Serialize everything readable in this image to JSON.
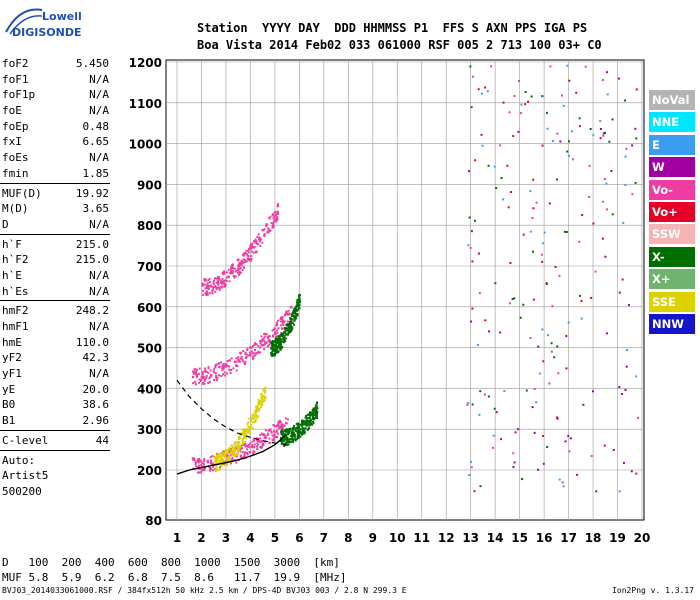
{
  "logo": {
    "brand": "Lowell",
    "product": "DIGISONDE"
  },
  "header": {
    "labels": [
      "Station",
      "YYYY",
      "DAY",
      "DDD",
      "HHMMSS",
      "P1",
      "FFS",
      "S",
      "AXN",
      "PPS",
      "IGA",
      "PS"
    ],
    "values": [
      "Boa Vista",
      "2014",
      "Feb02",
      "033",
      "061000",
      "RSF",
      "005",
      "2",
      "713",
      "100",
      "03+",
      "C0"
    ]
  },
  "params": [
    {
      "name": "foF2",
      "value": "5.450"
    },
    {
      "name": "foF1",
      "value": "N/A"
    },
    {
      "name": "foF1p",
      "value": "N/A"
    },
    {
      "name": "foE",
      "value": "N/A"
    },
    {
      "name": "foEp",
      "value": "0.48"
    },
    {
      "name": "fxI",
      "value": "6.65"
    },
    {
      "name": "foEs",
      "value": "N/A"
    },
    {
      "name": "fmin",
      "value": "1.85"
    },
    {
      "sep": true
    },
    {
      "name": "MUF(D)",
      "value": "19.92"
    },
    {
      "name": "M(D)",
      "value": "3.65"
    },
    {
      "name": "D",
      "value": "N/A"
    },
    {
      "sep": true
    },
    {
      "name": "h`F",
      "value": "215.0"
    },
    {
      "name": "h`F2",
      "value": "215.0"
    },
    {
      "name": "h`E",
      "value": "N/A"
    },
    {
      "name": "h`Es",
      "value": "N/A"
    },
    {
      "sep": true
    },
    {
      "name": "hmF2",
      "value": "248.2"
    },
    {
      "name": "hmF1",
      "value": "N/A"
    },
    {
      "name": "hmE",
      "value": "110.0"
    },
    {
      "name": "yF2",
      "value": "42.3"
    },
    {
      "name": "yF1",
      "value": "N/A"
    },
    {
      "name": "yE",
      "value": "20.0"
    },
    {
      "name": "B0",
      "value": "38.6"
    },
    {
      "name": "B1",
      "value": "2.96"
    },
    {
      "sep": true
    },
    {
      "name": "C-level",
      "value": "44"
    },
    {
      "sep": true
    }
  ],
  "scaling_note": [
    "Auto:",
    "Artist5",
    "500200"
  ],
  "legend": [
    {
      "label": "NoVal",
      "color": "#b4b4b4"
    },
    {
      "label": "NNE",
      "color": "#00e6ff"
    },
    {
      "label": "E",
      "color": "#3c9cf0"
    },
    {
      "label": "W",
      "color": "#a000a0"
    },
    {
      "label": "Vo-",
      "color": "#f03ca0"
    },
    {
      "label": "Vo+",
      "color": "#e60028"
    },
    {
      "label": "SSW",
      "color": "#f5b4b4"
    },
    {
      "label": "X-",
      "color": "#006e00"
    },
    {
      "label": "X+",
      "color": "#6eb46e"
    },
    {
      "label": "SSE",
      "color": "#dcd200"
    },
    {
      "label": "NNW",
      "color": "#1414c8"
    }
  ],
  "dmuf": {
    "d_label": "D",
    "d_values": [
      "100",
      "200",
      "400",
      "600",
      "800",
      "1000",
      "1500",
      "3000"
    ],
    "d_unit": "[km]",
    "muf_label": "MUF",
    "muf_values": [
      "5.8",
      "5.9",
      "6.2",
      "6.8",
      "7.5",
      "8.6",
      "11.7",
      "19.9"
    ],
    "muf_unit": "[MHz]"
  },
  "footer": "BVJ03_2014033061000.RSF / 384fx512h 50 kHz 2.5 km / DPS-4D BVJ03 003 / 2.8 N 299.3 E",
  "version": "Ion2Png v. 1.3.17",
  "chart_data": {
    "type": "scatter",
    "xlim": [
      1,
      20
    ],
    "ylim": [
      80,
      1200
    ],
    "x_ticks": [
      1,
      2,
      3,
      4,
      5,
      6,
      7,
      8,
      9,
      10,
      11,
      12,
      13,
      14,
      15,
      16,
      17,
      18,
      19,
      20
    ],
    "y_ticks": [
      80,
      200,
      300,
      400,
      500,
      600,
      700,
      800,
      900,
      1000,
      1100,
      1200
    ],
    "grid": true,
    "legend_position": "right",
    "traces": [
      {
        "kind": "echo-band",
        "color": "#f03ca0",
        "x": [
          1.6,
          5.5
        ],
        "y_start": 215,
        "y_end": 320
      },
      {
        "kind": "echo-band",
        "color": "#006e00",
        "x": [
          5.2,
          6.7
        ],
        "y_start": 280,
        "y_end": 350
      },
      {
        "kind": "echo-band",
        "color": "#f03ca0",
        "x": [
          1.6,
          5.7
        ],
        "y_start": 430,
        "y_end": 590
      },
      {
        "kind": "echo-band",
        "color": "#006e00",
        "x": [
          4.8,
          6.0
        ],
        "y_start": 500,
        "y_end": 620
      },
      {
        "kind": "echo-band",
        "color": "#f03ca0",
        "x": [
          2.0,
          5.1
        ],
        "y_start": 650,
        "y_end": 840
      },
      {
        "kind": "echo-band",
        "color": "#dcd200",
        "x": [
          2.5,
          4.6
        ],
        "y_start": 220,
        "y_end": 400
      }
    ],
    "profile_solid": {
      "x": [
        1,
        1.5,
        2,
        2.5,
        3,
        3.5,
        4,
        4.5,
        5,
        5.45
      ],
      "y": [
        190,
        200,
        206,
        212,
        218,
        225,
        234,
        245,
        262,
        285
      ]
    },
    "profile_dashed": {
      "x": [
        1,
        1.5,
        2,
        2.5,
        3,
        3.5,
        4,
        4.5,
        5,
        5.45
      ],
      "y": [
        420,
        380,
        350,
        325,
        305,
        290,
        280,
        272,
        266,
        262
      ]
    }
  }
}
